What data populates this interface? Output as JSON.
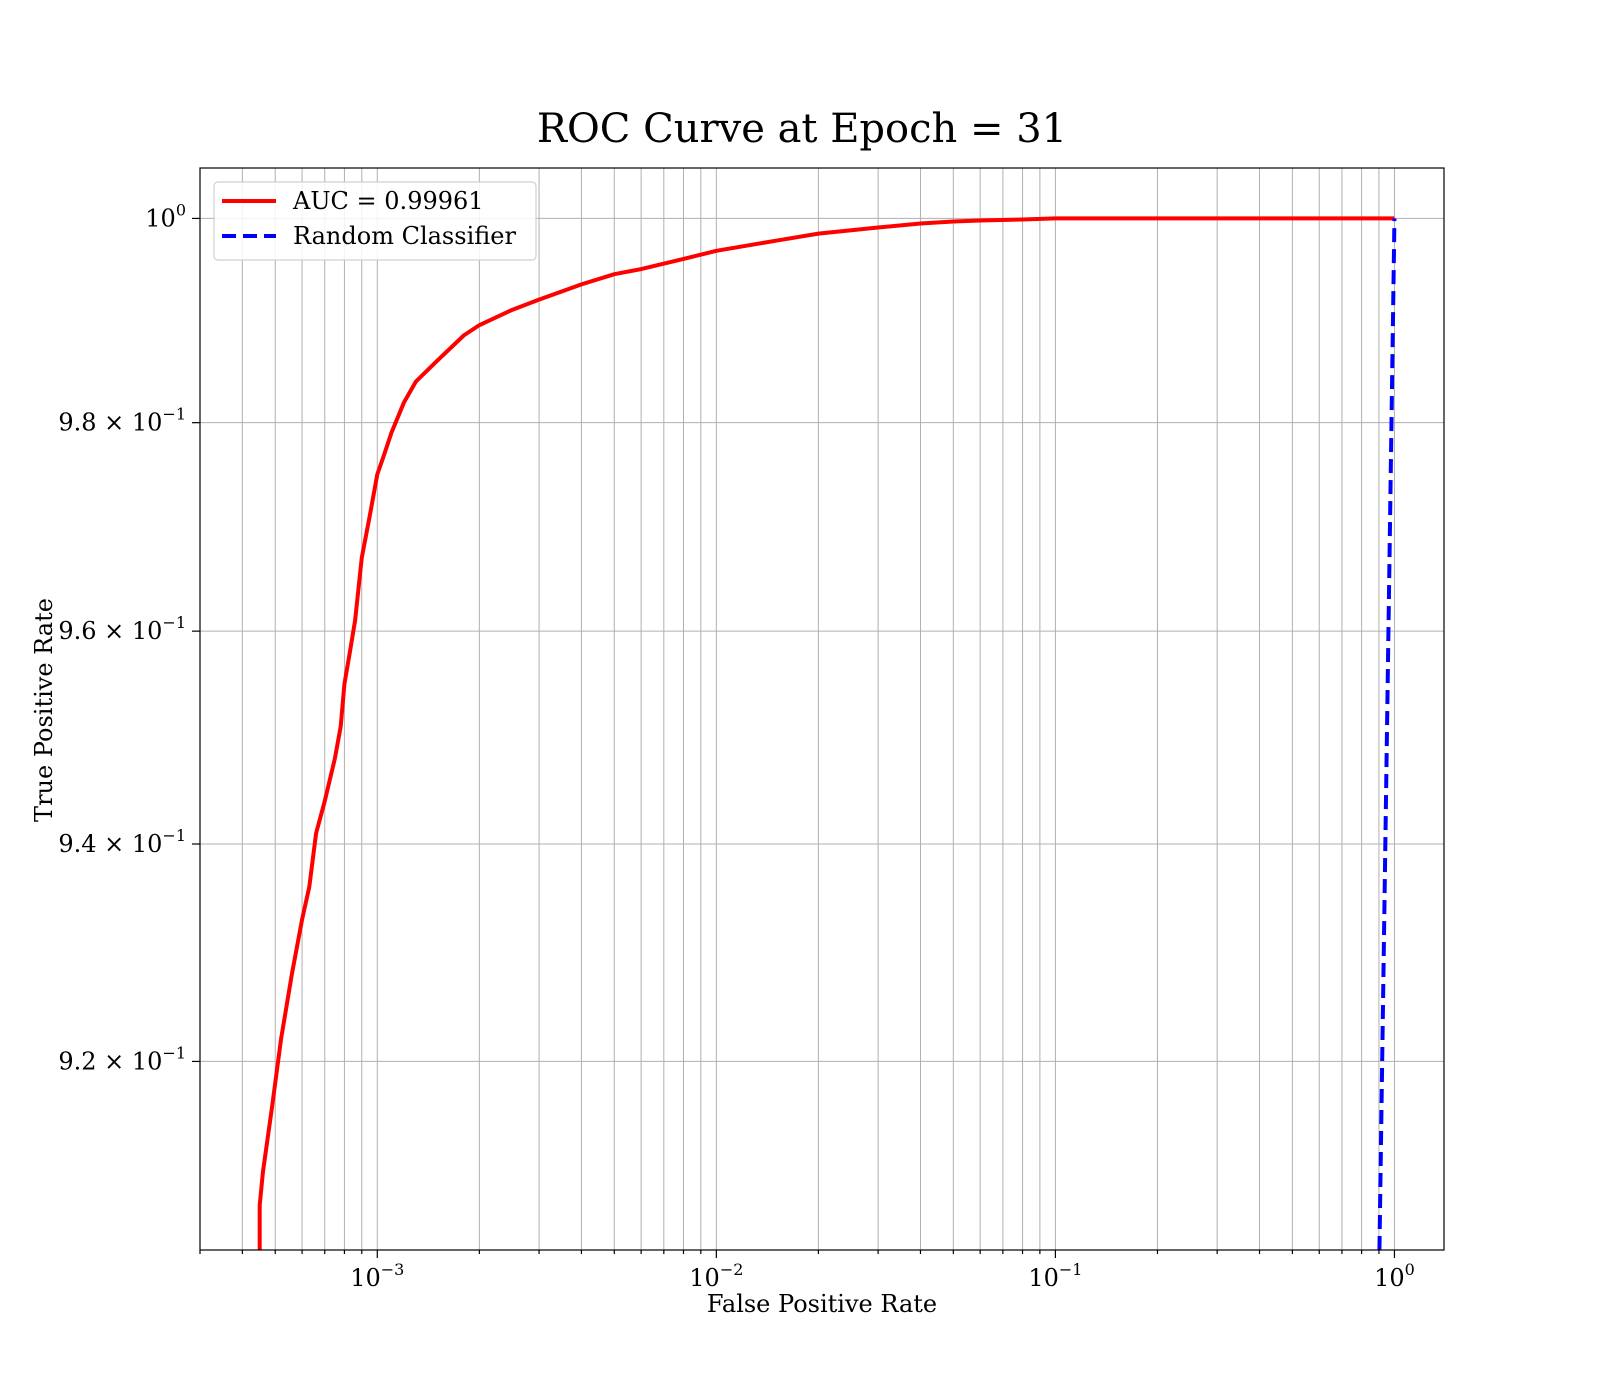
{
  "chart_data": {
    "type": "line",
    "title": "ROC Curve at Epoch = 31",
    "xlabel": "False Positive Rate",
    "ylabel": "True Positive Rate",
    "xscale": "log",
    "yscale": "log",
    "xlim": [
      0.0003,
      1.4
    ],
    "ylim": [
      0.903,
      1.005
    ],
    "grid": true,
    "legend_position": "top-left",
    "x_ticks": [
      {
        "value": 0.001,
        "base": "10",
        "exp": "−3"
      },
      {
        "value": 0.01,
        "base": "10",
        "exp": "−2"
      },
      {
        "value": 0.1,
        "base": "10",
        "exp": "−1"
      },
      {
        "value": 1,
        "base": "10",
        "exp": "0"
      }
    ],
    "y_ticks": [
      {
        "value": 1.0,
        "base": "10",
        "exp": "0"
      },
      {
        "value": 0.98,
        "base": "9.8 × 10",
        "exp": "−1"
      },
      {
        "value": 0.96,
        "base": "9.6 × 10",
        "exp": "−1"
      },
      {
        "value": 0.94,
        "base": "9.4 × 10",
        "exp": "−1"
      },
      {
        "value": 0.92,
        "base": "9.2 × 10",
        "exp": "−1"
      }
    ],
    "series": [
      {
        "name": "AUC = 0.99961",
        "color": "#ff0000",
        "style": "solid",
        "x": [
          0.00045,
          0.00045,
          0.00046,
          0.00049,
          0.00052,
          0.00056,
          0.0006,
          0.00063,
          0.00066,
          0.0007,
          0.00075,
          0.00078,
          0.0008,
          0.00083,
          0.00086,
          0.0009,
          0.00095,
          0.001,
          0.00105,
          0.0011,
          0.0012,
          0.0013,
          0.0015,
          0.0018,
          0.002,
          0.0025,
          0.003,
          0.004,
          0.005,
          0.006,
          0.008,
          0.01,
          0.015,
          0.02,
          0.03,
          0.04,
          0.05,
          0.06,
          0.08,
          0.1,
          0.15,
          0.2,
          0.3,
          0.5,
          0.7,
          1.0
        ],
        "y": [
          0.903,
          0.907,
          0.91,
          0.916,
          0.922,
          0.928,
          0.933,
          0.936,
          0.941,
          0.944,
          0.948,
          0.951,
          0.955,
          0.958,
          0.961,
          0.967,
          0.971,
          0.975,
          0.977,
          0.979,
          0.982,
          0.984,
          0.986,
          0.9885,
          0.9895,
          0.991,
          0.992,
          0.9935,
          0.9945,
          0.995,
          0.996,
          0.9968,
          0.9978,
          0.9985,
          0.9991,
          0.9995,
          0.9997,
          0.9998,
          0.9999,
          1.0,
          1.0,
          1.0,
          1.0,
          1.0,
          1.0,
          1.0
        ]
      },
      {
        "name": "Random Classifier",
        "color": "#0000ff",
        "style": "dashed",
        "x": [
          0.903,
          0.95,
          1.0
        ],
        "y": [
          0.903,
          0.95,
          1.0
        ]
      }
    ]
  }
}
